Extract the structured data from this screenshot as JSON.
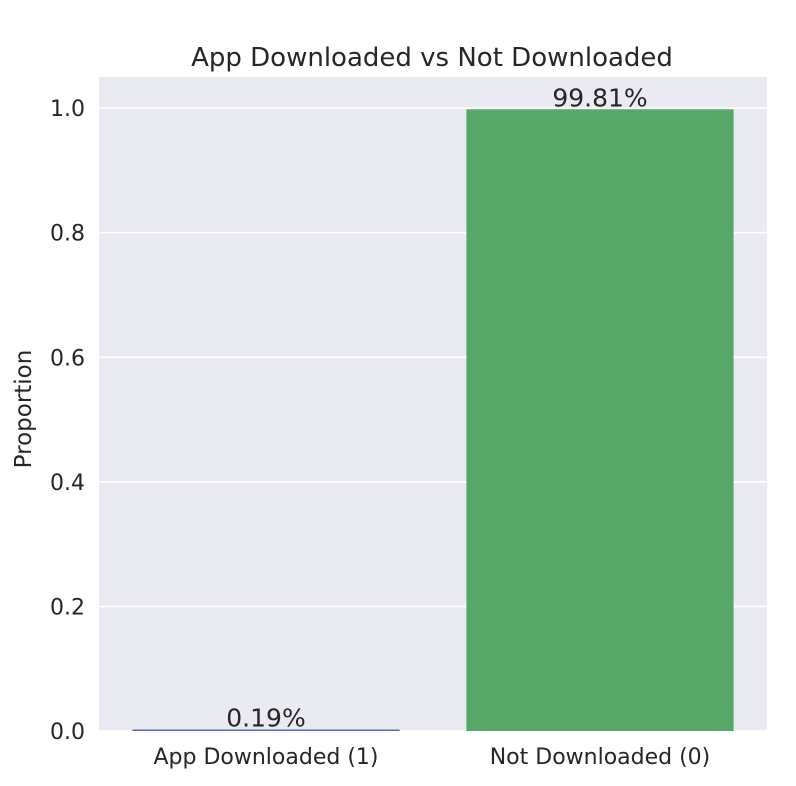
{
  "chart_data": {
    "type": "bar",
    "title": "App Downloaded vs Not Downloaded",
    "xlabel": "",
    "ylabel": "Proportion",
    "ylim": [
      0,
      1.05
    ],
    "yticks": [
      0.0,
      0.2,
      0.4,
      0.6,
      0.8,
      1.0
    ],
    "ytick_labels": [
      "0.0",
      "0.2",
      "0.4",
      "0.6",
      "0.8",
      "1.0"
    ],
    "categories": [
      "App Downloaded (1)",
      "Not Downloaded (0)"
    ],
    "values": [
      0.0019,
      0.9981
    ],
    "data_labels": [
      "0.19%",
      "99.81%"
    ],
    "colors": [
      "#4c72b0",
      "#55a868"
    ],
    "background": "#eaeaf2",
    "grid": true,
    "legend": "none"
  }
}
